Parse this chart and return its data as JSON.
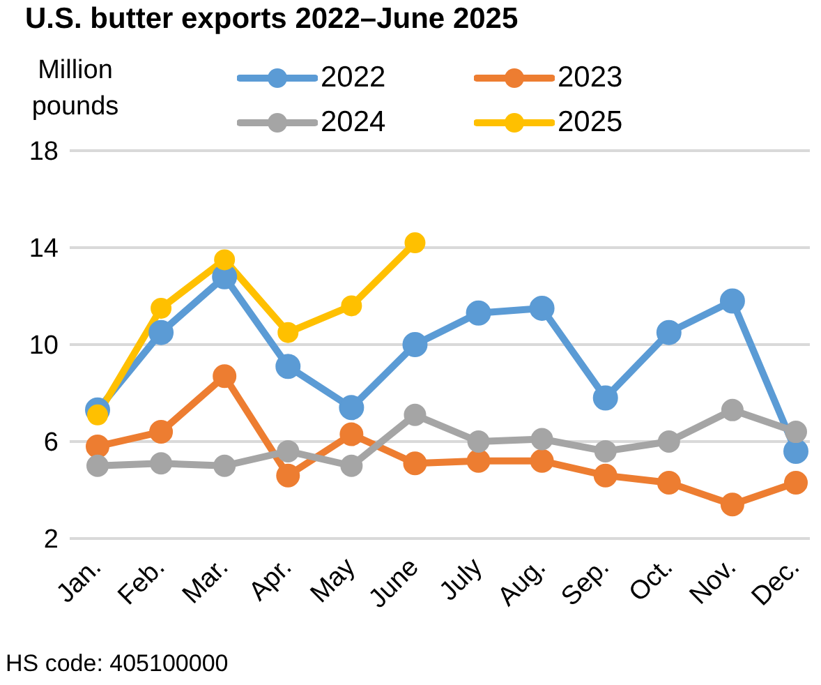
{
  "chart_data": {
    "type": "line",
    "title": "U.S. butter exports 2022–June 2025",
    "ylabel": "Million pounds",
    "categories": [
      "Jan.",
      "Feb.",
      "Mar.",
      "Apr.",
      "May",
      "June",
      "July",
      "Aug.",
      "Sep.",
      "Oct.",
      "Nov.",
      "Dec."
    ],
    "series": [
      {
        "name": "2022",
        "color": "#5b9bd5",
        "values": [
          7.3,
          10.5,
          12.8,
          9.1,
          7.4,
          10.0,
          11.3,
          11.5,
          7.8,
          10.5,
          11.8,
          5.6
        ]
      },
      {
        "name": "2023",
        "color": "#ed7d31",
        "values": [
          5.8,
          6.4,
          8.7,
          4.6,
          6.3,
          5.1,
          5.2,
          5.2,
          4.6,
          4.3,
          3.4,
          4.3
        ]
      },
      {
        "name": "2024",
        "color": "#a5a5a5",
        "values": [
          5.0,
          5.1,
          5.0,
          5.6,
          5.0,
          7.1,
          6.0,
          6.1,
          5.6,
          6.0,
          7.3,
          6.4
        ]
      },
      {
        "name": "2025",
        "color": "#ffc000",
        "values": [
          7.1,
          11.5,
          13.5,
          10.5,
          11.6,
          14.2,
          null,
          null,
          null,
          null,
          null,
          null
        ]
      }
    ],
    "ylim": [
      2,
      18
    ],
    "yticks": [
      2,
      6,
      10,
      14,
      18
    ],
    "grid": "y",
    "legend": "top",
    "marker": "circle",
    "line_style": "solid",
    "annotations": [
      "HS code: 405100000"
    ]
  }
}
